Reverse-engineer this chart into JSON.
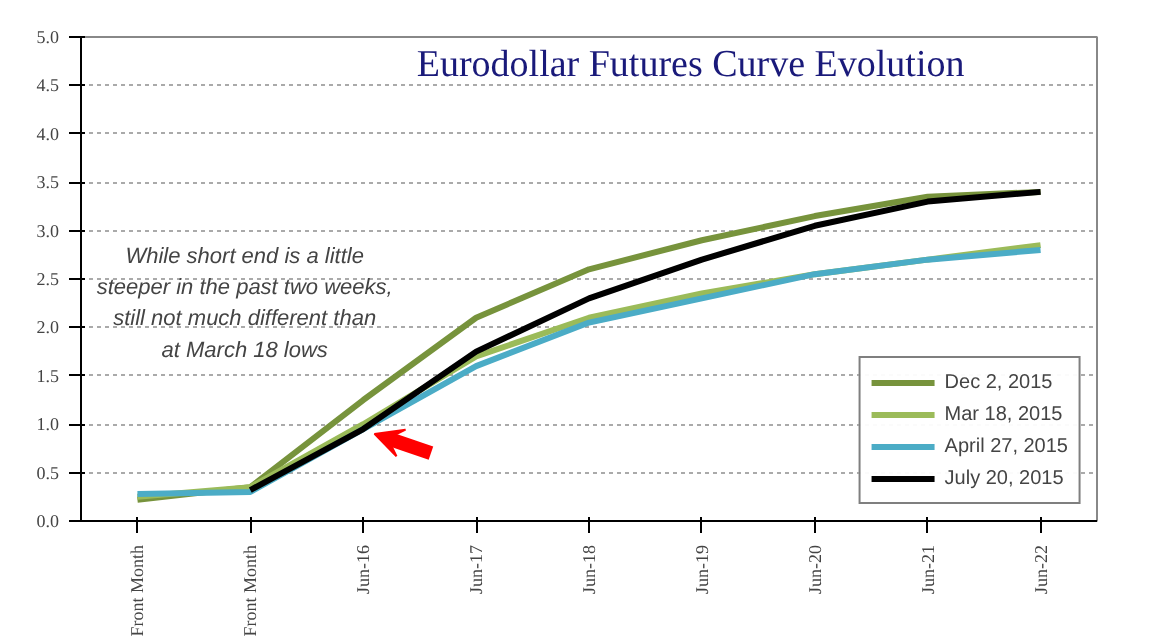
{
  "chart_data": {
    "type": "line",
    "title": "Eurodollar Futures Curve Evolution",
    "categories": [
      "Front Month",
      "Front Month",
      "Jun-16",
      "Jun-17",
      "Jun-18",
      "Jun-19",
      "Jun-20",
      "Jun-21",
      "Jun-22"
    ],
    "series": [
      {
        "name": "Dec 2, 2015",
        "color": "#77933c",
        "values": [
          0.22,
          0.35,
          1.25,
          2.1,
          2.6,
          2.9,
          3.15,
          3.35,
          3.4
        ]
      },
      {
        "name": "Mar 18, 2015",
        "color": "#9bbb59",
        "values": [
          0.25,
          0.35,
          1.0,
          1.7,
          2.1,
          2.35,
          2.55,
          2.7,
          2.85
        ]
      },
      {
        "name": "April 27, 2015",
        "color": "#4bacc6",
        "values": [
          0.28,
          0.3,
          0.95,
          1.6,
          2.05,
          2.3,
          2.55,
          2.7,
          2.8
        ]
      },
      {
        "name": "July 20, 2015",
        "color": "#000000",
        "values": [
          null,
          0.32,
          0.95,
          1.75,
          2.3,
          2.7,
          3.05,
          3.3,
          3.4
        ]
      }
    ],
    "ylim": [
      0,
      5
    ],
    "yticks": [
      {
        "value": 0,
        "label": "0.0"
      },
      {
        "value": 0.5,
        "label": "0.5"
      },
      {
        "value": 1,
        "label": "1.0"
      },
      {
        "value": 1.5,
        "label": "1.5"
      },
      {
        "value": 2,
        "label": "2.0"
      },
      {
        "value": 2.5,
        "label": "2.5"
      },
      {
        "value": 3,
        "label": "3.0"
      },
      {
        "value": 3.5,
        "label": "3.5"
      },
      {
        "value": 4,
        "label": "4.0"
      },
      {
        "value": 4.5,
        "label": "4.5"
      },
      {
        "value": 5,
        "label": "5.0"
      }
    ],
    "grid": "y",
    "legend": "bottom right",
    "marker": "none",
    "line_style": "solid",
    "annotations": [
      "While short end is a little steeper in the past two weeks, still not much different than at March 18 lows"
    ]
  }
}
